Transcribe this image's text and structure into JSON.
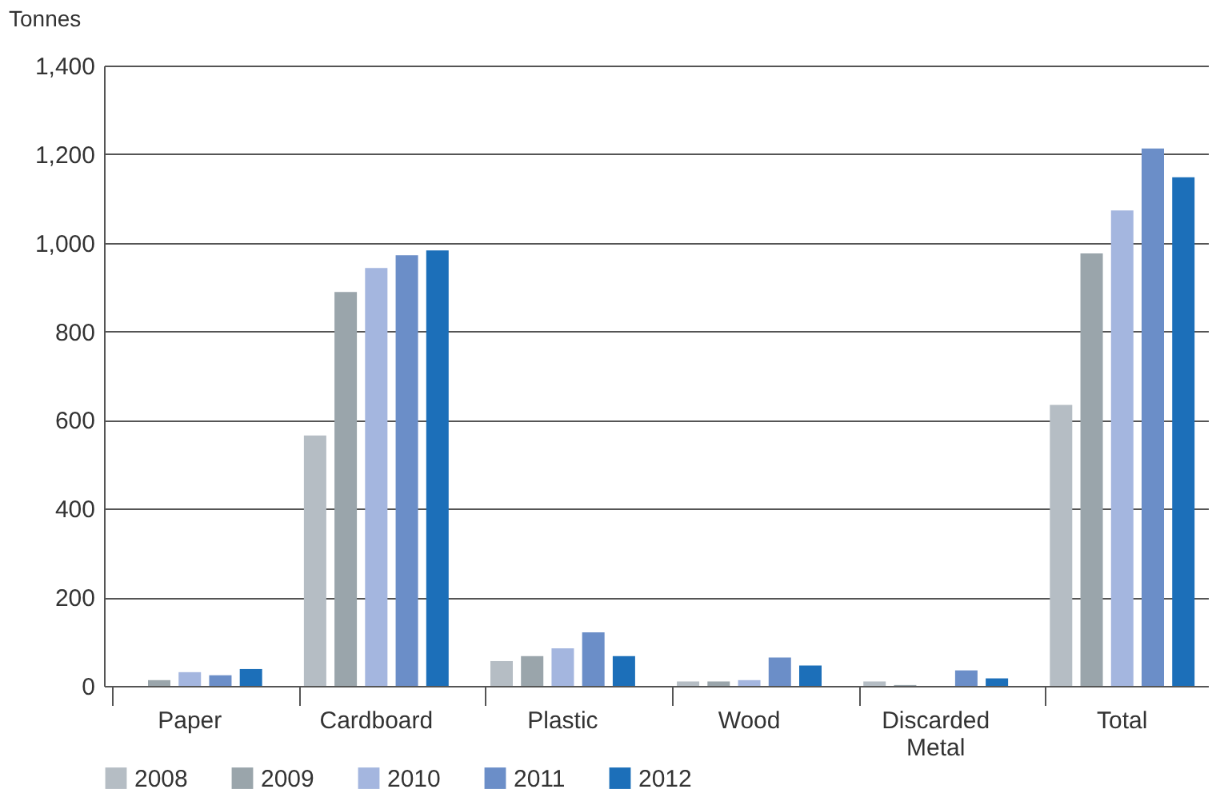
{
  "chart_data": {
    "type": "bar",
    "ylabel": "Tonnes",
    "categories": [
      "Paper",
      "Cardboard",
      "Plastic",
      "Wood",
      "Discarded Metal",
      "Total"
    ],
    "series": [
      {
        "name": "2008",
        "color": "#b5bdc4",
        "values": [
          0,
          565,
          56,
          10,
          10,
          634
        ]
      },
      {
        "name": "2009",
        "color": "#9aa5ab",
        "values": [
          13,
          889,
          67,
          10,
          2,
          976
        ]
      },
      {
        "name": "2010",
        "color": "#a4b6df",
        "values": [
          31,
          943,
          85,
          13,
          null,
          1073
        ]
      },
      {
        "name": "2011",
        "color": "#6b8ec8",
        "values": [
          24,
          972,
          121,
          64,
          35,
          1213
        ]
      },
      {
        "name": "2012",
        "color": "#1c6fb9",
        "values": [
          38,
          983,
          67,
          46,
          17,
          1148
        ]
      }
    ],
    "ylim": [
      0,
      1400
    ],
    "yticks": [
      {
        "value": 0,
        "label": "0"
      },
      {
        "value": 200,
        "label": "200"
      },
      {
        "value": 400,
        "label": "400"
      },
      {
        "value": 600,
        "label": "600"
      },
      {
        "value": 800,
        "label": "800"
      },
      {
        "value": 1000,
        "label": "1,000"
      },
      {
        "value": 1200,
        "label": "1,200"
      },
      {
        "value": 1400,
        "label": "1,400"
      }
    ],
    "grid": "y",
    "legend": "bottom"
  }
}
